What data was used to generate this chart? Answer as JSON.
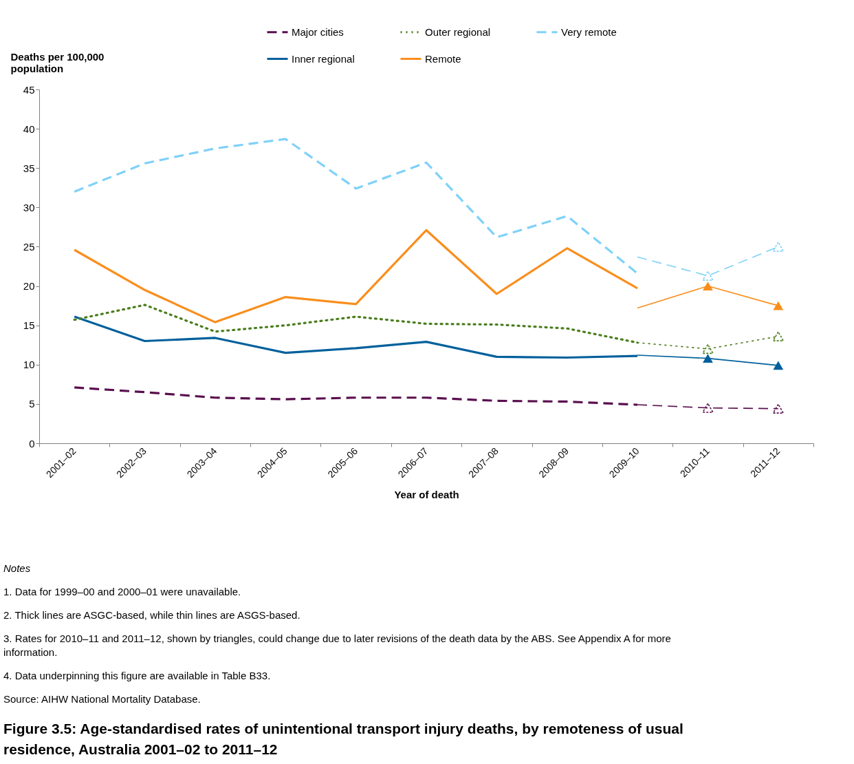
{
  "chart_data": {
    "type": "line",
    "title": "Figure 3.5: Age-standardised rates of unintentional transport injury deaths, by remoteness of usual residence, Australia 2001–02 to 2011–12",
    "xlabel": "Year of death",
    "ylabel": "Deaths per 100,000 population",
    "categories": [
      "2001–02",
      "2002–03",
      "2003–04",
      "2004–05",
      "2005–06",
      "2006–07",
      "2007–08",
      "2008–09",
      "2009–10",
      "2010–11",
      "2011–12"
    ],
    "series": [
      {
        "name": "Major cities",
        "color": "#5a0e4e",
        "line_style": "dashed",
        "values": [
          7.1,
          6.5,
          5.8,
          5.6,
          5.8,
          5.8,
          5.4,
          5.3,
          4.9,
          null,
          null
        ]
      },
      {
        "name": "Inner regional",
        "color": "#00609c",
        "line_style": "solid",
        "values": [
          16.1,
          13.0,
          13.4,
          11.5,
          12.1,
          12.9,
          11.0,
          10.9,
          11.1,
          null,
          null
        ]
      },
      {
        "name": "Outer regional",
        "color": "#4a7d1b",
        "line_style": "dotted",
        "values": [
          15.7,
          17.6,
          14.2,
          15.0,
          16.1,
          15.2,
          15.1,
          14.6,
          12.8,
          null,
          null
        ]
      },
      {
        "name": "Remote",
        "color": "#f98e1d",
        "line_style": "solid",
        "values": [
          24.6,
          19.5,
          15.4,
          18.6,
          17.7,
          27.1,
          19.0,
          24.8,
          19.7,
          null,
          null
        ]
      },
      {
        "name": "Very remote",
        "color": "#7fd1f8",
        "line_style": "dashed",
        "values": [
          32.0,
          35.6,
          37.5,
          38.7,
          32.4,
          35.7,
          26.2,
          28.9,
          21.6,
          null,
          null
        ]
      },
      {
        "color": "#5a0e4e",
        "line_style": "dashed",
        "values": [
          null,
          null,
          null,
          null,
          null,
          null,
          null,
          null,
          4.9,
          4.5,
          4.4
        ]
      },
      {
        "color": "#00609c",
        "line_style": "solid",
        "values": [
          null,
          null,
          null,
          null,
          null,
          null,
          null,
          null,
          11.2,
          10.8,
          9.9
        ]
      },
      {
        "color": "#4a7d1b",
        "line_style": "dotted",
        "values": [
          null,
          null,
          null,
          null,
          null,
          null,
          null,
          null,
          12.8,
          12.0,
          13.6
        ]
      },
      {
        "color": "#f98e1d",
        "line_style": "solid",
        "values": [
          null,
          null,
          null,
          null,
          null,
          null,
          null,
          null,
          17.2,
          20.0,
          17.5
        ]
      },
      {
        "color": "#7fd1f8",
        "line_style": "dashed",
        "values": [
          null,
          null,
          null,
          null,
          null,
          null,
          null,
          null,
          23.7,
          21.3,
          25.0
        ]
      },
      {
        "type": "scatter",
        "marker": "triangle",
        "line_style": "dashed",
        "color": "#5a0e4e",
        "values": [
          null,
          null,
          null,
          null,
          null,
          null,
          null,
          null,
          null,
          4.5,
          4.4
        ]
      },
      {
        "type": "scatter",
        "marker": "triangle",
        "line_style": "solid",
        "color": "#00609c",
        "values": [
          null,
          null,
          null,
          null,
          null,
          null,
          null,
          null,
          null,
          10.8,
          9.9
        ]
      },
      {
        "type": "scatter",
        "marker": "triangle",
        "line_style": "dotted",
        "color": "#4a7d1b",
        "values": [
          null,
          null,
          null,
          null,
          null,
          null,
          null,
          null,
          null,
          12.0,
          13.6
        ]
      },
      {
        "type": "scatter",
        "marker": "triangle",
        "line_style": "solid",
        "color": "#f98e1d",
        "values": [
          null,
          null,
          null,
          null,
          null,
          null,
          null,
          null,
          null,
          20.0,
          17.5
        ]
      },
      {
        "type": "scatter",
        "marker": "triangle",
        "line_style": "dashed",
        "color": "#7fd1f8",
        "values": [
          null,
          null,
          null,
          null,
          null,
          null,
          null,
          null,
          null,
          21.3,
          25.0
        ]
      }
    ],
    "ylim": [
      0,
      45
    ],
    "yticks": [
      0,
      5,
      10,
      15,
      20,
      25,
      30,
      35,
      40,
      45
    ],
    "grid": false,
    "legend": "top",
    "annotations": [
      "Notes",
      "1.   Data for 1999–00 and 2000–01 were unavailable.",
      "2.   Thick lines are ASGC-based, while thin lines are ASGS-based.",
      "3.   Rates for 2010–11 and 2011–12, shown by triangles, could change due to later revisions of the death data by the ABS. See Appendix A for more information.",
      "4.   Data underpinning this figure are available in Table B33.",
      "Source: AIHW National Mortality Database."
    ]
  }
}
